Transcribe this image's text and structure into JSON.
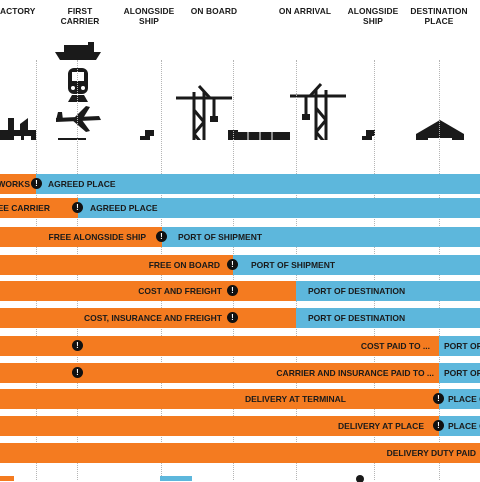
{
  "stages": [
    {
      "id": "factory",
      "label": "ACTORY"
    },
    {
      "id": "first-carrier",
      "label": "FIRST\nCARRIER"
    },
    {
      "id": "alongside-ship-1",
      "label": "ALONGSIDE\nSHIP"
    },
    {
      "id": "on-board",
      "label": "ON BOARD"
    },
    {
      "id": "on-arrival",
      "label": "ON ARRIVAL"
    },
    {
      "id": "alongside-ship-2",
      "label": "ALONGSIDE\nSHIP"
    },
    {
      "id": "destination-place",
      "label": "DESTINATION\nPLACE"
    }
  ],
  "icons": [
    "factory-icon",
    "ship-icon",
    "train-icon",
    "plane-icon",
    "truck-icon",
    "pallet-icon",
    "crane-icon",
    "container-ship-icon",
    "warehouse-icon"
  ],
  "colors": {
    "seller": "#f47b20",
    "buyer": "#5db7dc",
    "text": "#1a1a1a",
    "icon": "#1a1a1a"
  },
  "rows": [
    {
      "left": "WORKS",
      "right": "AGREED PLACE"
    },
    {
      "left": "EE CARRIER",
      "right": "AGREED PLACE"
    },
    {
      "left": "FREE ALONGSIDE SHIP",
      "right": "PORT OF SHIPMENT"
    },
    {
      "left": "FREE ON BOARD",
      "right": "PORT OF SHIPMENT"
    },
    {
      "left": "COST AND FREIGHT",
      "right": "PORT OF DESTINATION"
    },
    {
      "left": "COST, INSURANCE AND FREIGHT",
      "right": "PORT OF DESTINATION"
    },
    {
      "left": "COST PAID TO ...",
      "right": "PORT OF"
    },
    {
      "left": "CARRIER AND INSURANCE PAID TO ...",
      "right": "PORT OF"
    },
    {
      "left": "DELIVERY AT TERMINAL",
      "right": "PLACE O"
    },
    {
      "left": "DELIVERY AT PLACE",
      "right": "PLACE O"
    },
    {
      "left": "DELIVERY DUTY PAID",
      "right": ""
    }
  ],
  "mark_symbol": "!"
}
